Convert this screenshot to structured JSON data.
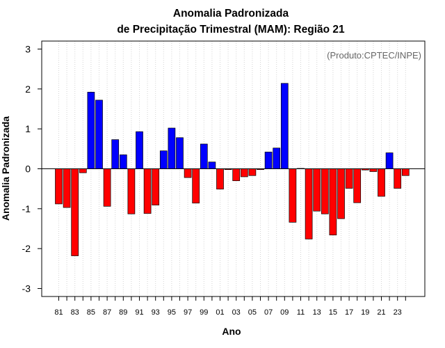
{
  "chart_data": {
    "type": "bar",
    "title_line1": "Anomalia Padronizada",
    "title_line2": "de Precipitação Trimestral (MAM): Região 21",
    "xlabel": "Ano",
    "ylabel": "Anomalia Padronizada",
    "credit": "(Produto:CPTEC/INPE)",
    "ylim": [
      -3.2,
      3.2
    ],
    "yticks": [
      "-3",
      "-2",
      "-1",
      "0",
      "1",
      "2",
      "3"
    ],
    "ytick_values": [
      -3,
      -2,
      -1,
      0,
      1,
      2,
      3
    ],
    "grid": "vertical dotted",
    "colors": {
      "positive": "#0000ff",
      "negative": "#ff0000",
      "grid": "#d3d3d3",
      "axis": "#000000"
    },
    "categories": [
      "81",
      "82",
      "83",
      "84",
      "85",
      "86",
      "87",
      "88",
      "89",
      "90",
      "91",
      "92",
      "93",
      "94",
      "95",
      "96",
      "97",
      "98",
      "99",
      "00",
      "01",
      "02",
      "03",
      "04",
      "05",
      "06",
      "07",
      "08",
      "09",
      "10",
      "11",
      "12",
      "13",
      "14",
      "15",
      "16",
      "17",
      "18",
      "19",
      "20",
      "21",
      "22",
      "23",
      "24"
    ],
    "xtick_labels": [
      "81",
      "83",
      "85",
      "87",
      "89",
      "91",
      "93",
      "95",
      "97",
      "99",
      "01",
      "03",
      "05",
      "07",
      "09",
      "11",
      "13",
      "15",
      "17",
      "19",
      "21",
      "23"
    ],
    "values": [
      -0.88,
      -0.97,
      -2.18,
      -0.1,
      1.92,
      1.72,
      -0.94,
      0.73,
      0.35,
      -1.13,
      0.93,
      -1.12,
      -0.91,
      0.45,
      1.02,
      0.78,
      -0.22,
      -0.86,
      0.62,
      0.17,
      -0.51,
      -0.02,
      -0.3,
      -0.2,
      -0.17,
      -0.02,
      0.42,
      0.52,
      2.14,
      -1.34,
      0.01,
      -1.76,
      -1.06,
      -1.13,
      -1.66,
      -1.25,
      -0.49,
      -0.85,
      -0.03,
      -0.07,
      -0.69,
      0.4,
      -0.49,
      -0.17
    ]
  }
}
